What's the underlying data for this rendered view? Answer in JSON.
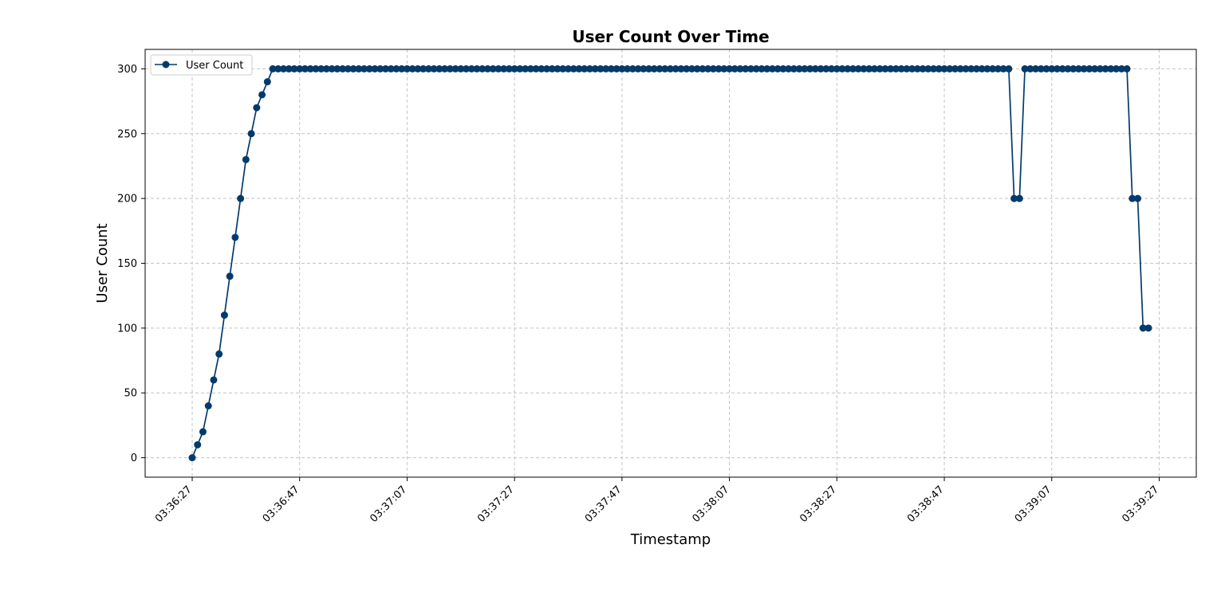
{
  "chart_data": {
    "type": "line",
    "title": "User Count Over Time",
    "xlabel": "Timestamp",
    "ylabel": "User Count",
    "ylim": [
      -15,
      315
    ],
    "y_ticks": [
      0,
      50,
      100,
      150,
      200,
      250,
      300
    ],
    "x_ticks": [
      "03:36:27",
      "03:36:47",
      "03:37:07",
      "03:37:27",
      "03:37:47",
      "03:38:07",
      "03:38:27",
      "03:38:47",
      "03:39:07",
      "03:39:27"
    ],
    "x_start": "03:36:27",
    "x_end": "03:39:27",
    "x_step_seconds": 1,
    "grid": true,
    "legend": "upper-left",
    "series": [
      {
        "name": "User Count",
        "color": "#033a6c",
        "marker": "circle",
        "values": [
          0,
          10,
          20,
          40,
          60,
          80,
          110,
          140,
          170,
          200,
          230,
          250,
          270,
          280,
          290,
          300,
          300,
          300,
          300,
          300,
          300,
          300,
          300,
          300,
          300,
          300,
          300,
          300,
          300,
          300,
          300,
          300,
          300,
          300,
          300,
          300,
          300,
          300,
          300,
          300,
          300,
          300,
          300,
          300,
          300,
          300,
          300,
          300,
          300,
          300,
          300,
          300,
          300,
          300,
          300,
          300,
          300,
          300,
          300,
          300,
          300,
          300,
          300,
          300,
          300,
          300,
          300,
          300,
          300,
          300,
          300,
          300,
          300,
          300,
          300,
          300,
          300,
          300,
          300,
          300,
          300,
          300,
          300,
          300,
          300,
          300,
          300,
          300,
          300,
          300,
          300,
          300,
          300,
          300,
          300,
          300,
          300,
          300,
          300,
          300,
          300,
          300,
          300,
          300,
          300,
          300,
          300,
          300,
          300,
          300,
          300,
          300,
          300,
          300,
          300,
          300,
          300,
          300,
          300,
          300,
          300,
          300,
          300,
          300,
          300,
          300,
          300,
          300,
          300,
          300,
          300,
          300,
          300,
          300,
          300,
          300,
          300,
          300,
          300,
          300,
          300,
          300,
          300,
          300,
          300,
          300,
          300,
          300,
          300,
          300,
          300,
          300,
          300,
          200,
          200,
          300,
          300,
          300,
          300,
          300,
          300,
          300,
          300,
          300,
          300,
          300,
          300,
          300,
          300,
          300,
          300,
          300,
          300,
          300,
          300,
          200,
          200,
          100,
          100
        ]
      }
    ]
  }
}
